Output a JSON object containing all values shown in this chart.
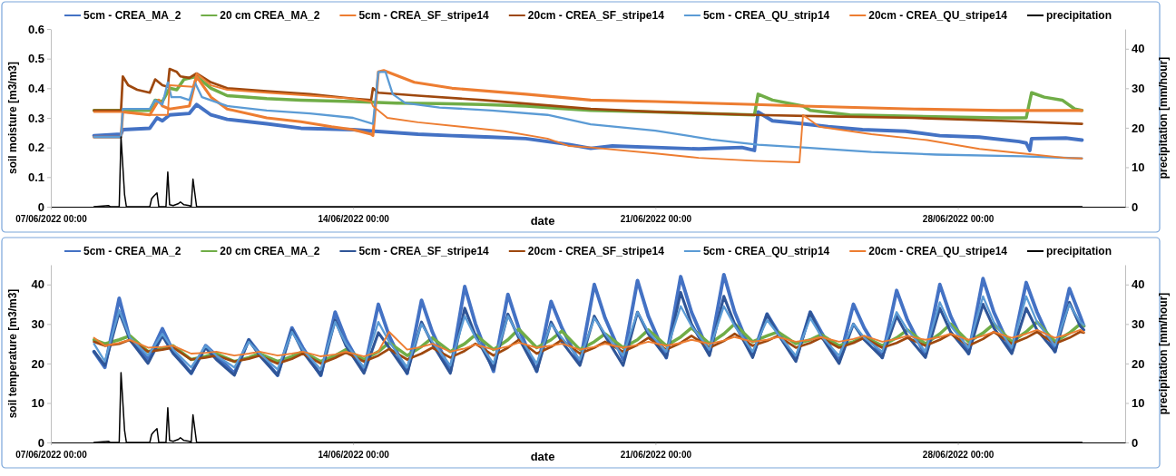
{
  "chart_data": [
    {
      "type": "line",
      "xlabel": "date",
      "ylabel": "soil moisture [m3/m3]",
      "y2label": "precipitation [mm/hour]",
      "legend": "top",
      "xlim": [
        "2022-06-07T00:00",
        "2022-07-01T21:00"
      ],
      "xticks": [
        {
          "value": "2022-06-07T00:00",
          "label": "07/06/2022 00:00"
        },
        {
          "value": "2022-06-14T00:00",
          "label": "14/06/2022 00:00"
        },
        {
          "value": "2022-06-21T00:00",
          "label": "21/06/2022 00:00"
        },
        {
          "value": "2022-06-28T00:00",
          "label": "28/06/2022 00:00"
        }
      ],
      "ylim": [
        0,
        0.6
      ],
      "yticks": [
        0,
        0.1,
        0.2,
        0.3,
        0.4,
        0.5,
        0.6
      ],
      "y2lim": [
        0,
        45
      ],
      "y2ticks": [
        0,
        10,
        20,
        30,
        40
      ],
      "series": [
        {
          "name": "5cm - CREA_MA_2",
          "color": "#4472c4",
          "x": [
            "2022-06-08T00:00",
            "2022-06-08T15:00",
            "2022-06-08T16:00",
            "2022-06-09T07:00",
            "2022-06-09T11:00",
            "2022-06-09T14:00",
            "2022-06-09T18:00",
            "2022-06-10T05:00",
            "2022-06-10T09:00",
            "2022-06-10T17:00",
            "2022-06-11T02:00",
            "2022-06-12T00:00",
            "2022-06-12T19:00",
            "2022-06-14T00:00",
            "2022-06-14T12:00",
            "2022-06-15T12:00",
            "2022-06-16T07:00",
            "2022-06-17T05:00",
            "2022-06-18T00:00",
            "2022-06-19T00:00",
            "2022-06-19T12:00",
            "2022-06-20T00:00",
            "2022-06-21T00:00",
            "2022-06-22T00:00",
            "2022-06-23T00:00",
            "2022-06-23T07:00",
            "2022-06-23T09:00",
            "2022-06-23T17:00",
            "2022-06-24T10:00",
            "2022-06-25T00:00",
            "2022-06-25T19:00",
            "2022-06-26T19:00",
            "2022-06-27T14:00",
            "2022-06-28T12:00",
            "2022-06-29T10:00",
            "2022-06-29T14:00",
            "2022-06-29T16:00",
            "2022-06-29T17:00",
            "2022-06-30T12:00",
            "2022-06-30T21:00"
          ],
          "values": [
            0.24,
            0.245,
            0.26,
            0.265,
            0.3,
            0.29,
            0.31,
            0.315,
            0.345,
            0.31,
            0.295,
            0.28,
            0.265,
            0.26,
            0.255,
            0.245,
            0.24,
            0.235,
            0.23,
            0.21,
            0.197,
            0.205,
            0.2,
            0.195,
            0.2,
            0.19,
            0.32,
            0.29,
            0.28,
            0.27,
            0.26,
            0.255,
            0.24,
            0.235,
            0.22,
            0.215,
            0.19,
            0.23,
            0.232,
            0.225
          ]
        },
        {
          "name": "20 cm CREA_MA_2",
          "color": "#70ad47",
          "x": [
            "2022-06-08T00:00",
            "2022-06-09T07:00",
            "2022-06-09T10:00",
            "2022-06-09T14:00",
            "2022-06-09T18:00",
            "2022-06-09T22:00",
            "2022-06-10T02:00",
            "2022-06-10T09:00",
            "2022-06-10T17:00",
            "2022-06-11T02:00",
            "2022-06-12T00:00",
            "2022-06-12T19:00",
            "2022-06-14T00:00",
            "2022-06-15T00:00",
            "2022-06-16T00:00",
            "2022-06-17T00:00",
            "2022-06-18T00:00",
            "2022-06-19T00:00",
            "2022-06-19T12:00",
            "2022-06-21T00:00",
            "2022-06-23T07:00",
            "2022-06-23T09:00",
            "2022-06-23T17:00",
            "2022-06-24T10:00",
            "2022-06-24T14:00",
            "2022-06-25T12:00",
            "2022-06-27T00:00",
            "2022-06-29T00:00",
            "2022-06-29T14:00",
            "2022-06-29T17:00",
            "2022-06-30T00:00",
            "2022-06-30T10:00",
            "2022-06-30T17:00",
            "2022-06-30T21:00"
          ],
          "values": [
            0.325,
            0.325,
            0.36,
            0.355,
            0.4,
            0.395,
            0.43,
            0.44,
            0.4,
            0.375,
            0.365,
            0.36,
            0.355,
            0.35,
            0.348,
            0.345,
            0.34,
            0.33,
            0.325,
            0.32,
            0.31,
            0.38,
            0.36,
            0.34,
            0.325,
            0.31,
            0.305,
            0.3,
            0.3,
            0.385,
            0.37,
            0.36,
            0.33,
            0.325
          ]
        },
        {
          "name": "5cm - CREA_SF_stripe14",
          "color": "#ed7d31",
          "x": [
            "2022-06-08T00:00",
            "2022-06-08T15:00",
            "2022-06-08T16:00",
            "2022-06-09T00:00",
            "2022-06-09T07:00",
            "2022-06-09T12:00",
            "2022-06-09T14:00",
            "2022-06-09T18:00",
            "2022-06-10T05:00",
            "2022-06-10T09:00",
            "2022-06-10T17:00",
            "2022-06-11T02:00",
            "2022-06-12T00:00",
            "2022-06-12T19:00",
            "2022-06-13T12:00",
            "2022-06-14T00:00",
            "2022-06-14T10:00",
            "2022-06-14T11:00",
            "2022-06-14T14:00",
            "2022-06-14T17:00",
            "2022-06-15T10:00",
            "2022-06-16T07:00",
            "2022-06-18T00:00",
            "2022-06-19T12:00",
            "2022-06-21T00:00",
            "2022-06-23T07:00",
            "2022-06-24T10:00",
            "2022-06-27T00:00",
            "2022-06-29T00:00",
            "2022-06-30T21:00"
          ],
          "values": [
            0.235,
            0.235,
            0.32,
            0.315,
            0.31,
            0.36,
            0.34,
            0.33,
            0.34,
            0.44,
            0.37,
            0.33,
            0.3,
            0.287,
            0.27,
            0.26,
            0.245,
            0.24,
            0.455,
            0.46,
            0.42,
            0.4,
            0.38,
            0.36,
            0.355,
            0.345,
            0.34,
            0.33,
            0.325,
            0.325
          ]
        },
        {
          "name": "20cm - CREA_SF_stripe14",
          "color": "#9e480e",
          "x": [
            "2022-06-08T00:00",
            "2022-06-08T15:00",
            "2022-06-08T16:00",
            "2022-06-08T19:00",
            "2022-06-09T00:00",
            "2022-06-09T07:00",
            "2022-06-09T10:00",
            "2022-06-09T14:00",
            "2022-06-09T17:00",
            "2022-06-09T18:00",
            "2022-06-09T22:00",
            "2022-06-10T00:00",
            "2022-06-10T05:00",
            "2022-06-10T09:00",
            "2022-06-10T17:00",
            "2022-06-11T02:00",
            "2022-06-12T00:00",
            "2022-06-13T00:00",
            "2022-06-14T00:00",
            "2022-06-14T10:00",
            "2022-06-14T11:00",
            "2022-06-14T14:00",
            "2022-06-15T12:00",
            "2022-06-17T00:00",
            "2022-06-19T12:00",
            "2022-06-21T00:00",
            "2022-06-23T07:00",
            "2022-06-25T00:00",
            "2022-06-27T00:00",
            "2022-06-29T00:00",
            "2022-06-30T21:00"
          ],
          "values": [
            0.325,
            0.325,
            0.44,
            0.41,
            0.395,
            0.385,
            0.43,
            0.41,
            0.405,
            0.465,
            0.455,
            0.44,
            0.435,
            0.45,
            0.42,
            0.4,
            0.39,
            0.38,
            0.365,
            0.36,
            0.4,
            0.385,
            0.375,
            0.36,
            0.33,
            0.32,
            0.31,
            0.305,
            0.3,
            0.29,
            0.28
          ]
        },
        {
          "name": "5cm - CREA_QU_strip14",
          "color": "#5b9bd5",
          "x": [
            "2022-06-08T00:00",
            "2022-06-08T15:00",
            "2022-06-08T16:00",
            "2022-06-09T07:00",
            "2022-06-09T10:00",
            "2022-06-09T14:00",
            "2022-06-09T17:00",
            "2022-06-09T19:00",
            "2022-06-10T00:00",
            "2022-06-10T05:00",
            "2022-06-10T08:00",
            "2022-06-10T12:00",
            "2022-06-11T02:00",
            "2022-06-12T00:00",
            "2022-06-13T00:00",
            "2022-06-14T00:00",
            "2022-06-14T11:00",
            "2022-06-14T14:00",
            "2022-06-14T18:00",
            "2022-06-14T22:00",
            "2022-06-15T05:00",
            "2022-06-16T00:00",
            "2022-06-17T05:00",
            "2022-06-18T12:00",
            "2022-06-19T12:00",
            "2022-06-21T00:00",
            "2022-06-22T07:00",
            "2022-06-23T09:00",
            "2022-06-24T10:00",
            "2022-06-26T00:00",
            "2022-06-27T12:00",
            "2022-06-29T12:00",
            "2022-06-30T21:00"
          ],
          "values": [
            0.235,
            0.235,
            0.33,
            0.33,
            0.36,
            0.345,
            0.42,
            0.37,
            0.37,
            0.36,
            0.42,
            0.37,
            0.34,
            0.325,
            0.315,
            0.3,
            0.28,
            0.455,
            0.455,
            0.38,
            0.35,
            0.335,
            0.325,
            0.31,
            0.278,
            0.257,
            0.227,
            0.209,
            0.2,
            0.185,
            0.176,
            0.17,
            0.163
          ]
        },
        {
          "name": "20cm - CREA_QU_stripe14",
          "color": "#ed7d31",
          "x": [
            "2022-06-08T00:00",
            "2022-06-08T16:00",
            "2022-06-09T07:00",
            "2022-06-09T17:00",
            "2022-06-09T18:00",
            "2022-06-10T07:00",
            "2022-06-10T09:00",
            "2022-06-10T17:00",
            "2022-06-11T02:00",
            "2022-06-12T00:00",
            "2022-06-13T00:00",
            "2022-06-14T00:00",
            "2022-06-14T10:00",
            "2022-06-14T11:00",
            "2022-06-14T19:00",
            "2022-06-15T12:00",
            "2022-06-16T12:00",
            "2022-06-17T12:00",
            "2022-06-18T12:00",
            "2022-06-19T00:00",
            "2022-06-19T12:00",
            "2022-06-21T00:00",
            "2022-06-22T00:00",
            "2022-06-23T07:00",
            "2022-06-24T08:00",
            "2022-06-24T10:00",
            "2022-06-24T19:00",
            "2022-06-26T00:00",
            "2022-06-27T07:00",
            "2022-06-28T12:00",
            "2022-06-29T12:00",
            "2022-06-30T12:00",
            "2022-06-30T21:00"
          ],
          "values": [
            0.32,
            0.32,
            0.31,
            0.31,
            0.41,
            0.405,
            0.45,
            0.41,
            0.395,
            0.385,
            0.375,
            0.365,
            0.355,
            0.34,
            0.3,
            0.285,
            0.27,
            0.255,
            0.23,
            0.205,
            0.2,
            0.18,
            0.165,
            0.155,
            0.15,
            0.31,
            0.27,
            0.245,
            0.225,
            0.195,
            0.18,
            0.165,
            0.163
          ]
        },
        {
          "name": "precipitation",
          "color": "#000000",
          "axis": "y2",
          "x": [
            "2022-06-08T00:00",
            "2022-06-08T08:00",
            "2022-06-08T09:00",
            "2022-06-08T14:00",
            "2022-06-08T15:00",
            "2022-06-08T17:00",
            "2022-06-08T18:00",
            "2022-06-09T07:00",
            "2022-06-09T08:00",
            "2022-06-09T09:00",
            "2022-06-09T11:00",
            "2022-06-09T12:00",
            "2022-06-09T16:00",
            "2022-06-09T17:00",
            "2022-06-09T18:00",
            "2022-06-09T20:00",
            "2022-06-09T23:00",
            "2022-06-10T00:00",
            "2022-06-10T02:00",
            "2022-06-10T05:00",
            "2022-06-10T06:00",
            "2022-06-10T07:00",
            "2022-06-10T09:00",
            "2022-06-30T21:00"
          ],
          "values": [
            0,
            0.3,
            0,
            0,
            17.7,
            3,
            0,
            0,
            2,
            2.6,
            3.5,
            0,
            0,
            8.8,
            0.5,
            0.3,
            0.8,
            1.2,
            0.5,
            0.3,
            0,
            7,
            0,
            0
          ]
        }
      ]
    },
    {
      "type": "line",
      "xlabel": "date",
      "ylabel": "soil temperature [m3/m3]",
      "y2label": "precipitation [mm/hour]",
      "legend": "top",
      "xlim": [
        "2022-06-07T00:00",
        "2022-07-01T21:00"
      ],
      "xticks": [
        {
          "value": "2022-06-07T00:00",
          "label": "07/06/2022 00:00"
        },
        {
          "value": "2022-06-14T00:00",
          "label": "14/06/2022 00:00"
        },
        {
          "value": "2022-06-21T00:00",
          "label": "21/06/2022 00:00"
        },
        {
          "value": "2022-06-28T00:00",
          "label": "28/06/2022 00:00"
        }
      ],
      "ylim": [
        0,
        45
      ],
      "yticks": [
        0,
        10,
        20,
        30,
        40
      ],
      "y2lim": [
        0,
        45
      ],
      "y2ticks": [
        0,
        10,
        20,
        30,
        40
      ],
      "x": [
        "2022-06-08T00:00",
        "2022-06-08T06:00",
        "2022-06-08T14:00",
        "2022-06-08T20:00",
        "2022-06-09T06:00",
        "2022-06-09T14:00",
        "2022-06-09T20:00",
        "2022-06-10T06:00",
        "2022-06-10T14:00",
        "2022-06-10T20:00",
        "2022-06-11T06:00",
        "2022-06-11T14:00",
        "2022-06-11T20:00",
        "2022-06-12T06:00",
        "2022-06-12T14:00",
        "2022-06-12T20:00",
        "2022-06-13T06:00",
        "2022-06-13T14:00",
        "2022-06-13T20:00",
        "2022-06-14T06:00",
        "2022-06-14T14:00",
        "2022-06-14T20:00",
        "2022-06-15T06:00",
        "2022-06-15T14:00",
        "2022-06-15T20:00",
        "2022-06-16T06:00",
        "2022-06-16T14:00",
        "2022-06-16T20:00",
        "2022-06-17T06:00",
        "2022-06-17T14:00",
        "2022-06-17T20:00",
        "2022-06-18T06:00",
        "2022-06-18T14:00",
        "2022-06-18T20:00",
        "2022-06-19T06:00",
        "2022-06-19T14:00",
        "2022-06-19T20:00",
        "2022-06-20T06:00",
        "2022-06-20T14:00",
        "2022-06-20T20:00",
        "2022-06-21T06:00",
        "2022-06-21T14:00",
        "2022-06-21T20:00",
        "2022-06-22T06:00",
        "2022-06-22T14:00",
        "2022-06-22T20:00",
        "2022-06-23T06:00",
        "2022-06-23T14:00",
        "2022-06-23T20:00",
        "2022-06-24T06:00",
        "2022-06-24T14:00",
        "2022-06-24T20:00",
        "2022-06-25T06:00",
        "2022-06-25T14:00",
        "2022-06-25T20:00",
        "2022-06-26T06:00",
        "2022-06-26T14:00",
        "2022-06-26T20:00",
        "2022-06-27T06:00",
        "2022-06-27T14:00",
        "2022-06-27T20:00",
        "2022-06-28T06:00",
        "2022-06-28T14:00",
        "2022-06-28T20:00",
        "2022-06-29T06:00",
        "2022-06-29T14:00",
        "2022-06-29T20:00",
        "2022-06-30T06:00",
        "2022-06-30T14:00",
        "2022-06-30T20:00",
        "2022-06-30T22:00"
      ],
      "series": [
        {
          "name": "5cm - CREA_MA_2",
          "color": "#4472c4",
          "values": [
            23,
            19,
            36.5,
            26,
            21,
            28.8,
            23,
            17.5,
            24.5,
            22,
            17.5,
            26,
            22.5,
            17,
            29,
            24,
            17,
            33,
            26,
            18,
            35,
            27,
            17.5,
            36,
            28,
            18,
            39.5,
            30,
            18,
            37.5,
            29,
            18,
            35.7,
            29,
            20,
            40,
            31.5,
            21,
            41,
            32,
            21.5,
            42,
            33,
            22.5,
            42.5,
            33,
            22,
            32.5,
            28,
            21,
            33,
            28,
            20.5,
            35,
            29,
            21.5,
            38.5,
            31,
            22,
            40,
            32,
            22.5,
            41.5,
            33,
            23,
            40.5,
            33,
            23,
            39,
            32,
            29.5
          ]
        },
        {
          "name": "20 cm CREA_MA_2",
          "color": "#70ad47",
          "values": [
            26,
            25,
            26,
            27,
            23,
            23.8,
            24.5,
            21,
            21.8,
            22.5,
            20.5,
            21.5,
            22.5,
            20.5,
            21.8,
            23,
            20.5,
            22,
            23.5,
            21,
            23,
            25.3,
            22,
            24.3,
            26.5,
            23,
            25,
            27.3,
            23.5,
            26,
            28.7,
            24,
            26,
            28.2,
            23.5,
            25.5,
            27.5,
            24,
            26,
            28.5,
            24.5,
            26.7,
            29,
            25,
            27.5,
            30,
            25.5,
            27,
            28,
            25,
            26,
            27.3,
            24.5,
            25.5,
            26.8,
            24.5,
            26.5,
            28.5,
            25,
            27.5,
            30,
            25.5,
            27.7,
            30,
            25.5,
            28,
            30.5,
            25.5,
            27.7,
            30,
            29.5
          ]
        },
        {
          "name": "5cm - CREA_SF_stripe14",
          "color": "#2f5597",
          "values": [
            23,
            19.5,
            33,
            26,
            20,
            27,
            22.5,
            17.5,
            24,
            21,
            17,
            26,
            22,
            17,
            28.5,
            23,
            17,
            31,
            24.5,
            17.5,
            27.8,
            24,
            17.5,
            30.5,
            25,
            17.5,
            34,
            27,
            18.5,
            32.5,
            26.5,
            18,
            30.5,
            25.5,
            19.5,
            32,
            27,
            19.5,
            33,
            27.5,
            21.5,
            38,
            30,
            22,
            37,
            30,
            21.5,
            32.5,
            27.5,
            20.5,
            33,
            27,
            20,
            30,
            26,
            21.5,
            32,
            27,
            21.5,
            34,
            28,
            22.5,
            35,
            29,
            22.5,
            34,
            28.5,
            23,
            35.5,
            29.5,
            28.5
          ]
        },
        {
          "name": "20cm - CREA_SF_stripe14",
          "color": "#9e480e",
          "values": [
            25.5,
            24.5,
            25,
            26,
            23,
            23.5,
            24,
            21,
            21.5,
            22,
            20.5,
            21.2,
            22,
            20,
            21.2,
            22.5,
            20,
            21.4,
            22.8,
            20.5,
            22,
            23.7,
            21,
            22.5,
            24,
            21.5,
            23.2,
            25,
            22,
            24,
            26,
            22.5,
            24.2,
            26,
            22.5,
            24,
            25.5,
            23,
            24.7,
            26.5,
            23.5,
            25.2,
            27,
            24,
            25.7,
            27.5,
            24.5,
            25.7,
            27,
            24,
            25.2,
            26.5,
            24,
            25.2,
            26.5,
            24,
            25.2,
            26.5,
            24.5,
            26,
            27.5,
            24.5,
            26.2,
            28,
            25,
            26.5,
            28,
            25,
            26.5,
            28,
            27.8
          ]
        },
        {
          "name": "5cm - CREA_QU_strip14",
          "color": "#5b9bd5",
          "values": [
            25,
            20.5,
            33.5,
            26.5,
            22,
            27.5,
            23.5,
            19,
            24.5,
            22,
            19,
            25.5,
            22.5,
            18.5,
            28,
            23.5,
            18.5,
            30.5,
            25,
            19,
            30.5,
            25.5,
            19,
            30,
            25.5,
            19.5,
            32,
            26.5,
            20,
            32,
            27,
            20,
            30,
            26.5,
            21,
            31.5,
            27.5,
            22,
            33,
            28,
            23,
            34.5,
            29.5,
            23.5,
            34.5,
            29.5,
            23,
            31,
            27.5,
            22,
            31.5,
            27,
            22,
            30,
            26.5,
            23,
            33,
            28.5,
            23,
            35.5,
            29.5,
            24,
            37,
            30.5,
            24,
            37,
            30.5,
            24.5,
            35,
            30.5,
            29.7
          ]
        },
        {
          "name": "20cm - CREA_QU_stripe14",
          "color": "#ed7d31",
          "values": [
            26.5,
            24.5,
            25.2,
            26,
            24,
            24.2,
            24.5,
            22.5,
            22.7,
            23,
            22,
            22.5,
            23,
            22,
            22.5,
            23,
            21.8,
            22.3,
            23,
            21.8,
            23,
            28,
            23.5,
            24.2,
            25,
            23,
            23.8,
            24.8,
            23.5,
            24.3,
            25.3,
            24,
            24.5,
            25,
            23.5,
            24.2,
            25,
            24,
            24.7,
            25.5,
            24.5,
            25.2,
            26,
            25,
            25.8,
            26.7,
            25.5,
            26,
            26.7,
            25.5,
            26,
            26.7,
            25.5,
            26.2,
            27,
            25.5,
            26.2,
            27,
            26,
            26.7,
            27.5,
            26,
            27,
            28,
            26.5,
            27.5,
            28.5,
            26.5,
            27.5,
            28.5,
            28
          ]
        },
        {
          "name": "precipitation",
          "color": "#000000",
          "axis": "y2",
          "x": [
            "2022-06-08T00:00",
            "2022-06-08T08:00",
            "2022-06-08T09:00",
            "2022-06-08T14:00",
            "2022-06-08T15:00",
            "2022-06-08T17:00",
            "2022-06-08T18:00",
            "2022-06-09T07:00",
            "2022-06-09T08:00",
            "2022-06-09T09:00",
            "2022-06-09T11:00",
            "2022-06-09T12:00",
            "2022-06-09T16:00",
            "2022-06-09T17:00",
            "2022-06-09T18:00",
            "2022-06-09T20:00",
            "2022-06-09T23:00",
            "2022-06-10T00:00",
            "2022-06-10T02:00",
            "2022-06-10T05:00",
            "2022-06-10T06:00",
            "2022-06-10T07:00",
            "2022-06-10T09:00",
            "2022-06-30T21:00"
          ],
          "values": [
            0,
            0.3,
            0,
            0,
            17.7,
            3,
            0,
            0,
            2,
            2.6,
            3.5,
            0,
            0,
            8.8,
            0.5,
            0.3,
            0.8,
            1.2,
            0.5,
            0.3,
            0,
            7,
            0,
            0
          ]
        }
      ]
    }
  ]
}
